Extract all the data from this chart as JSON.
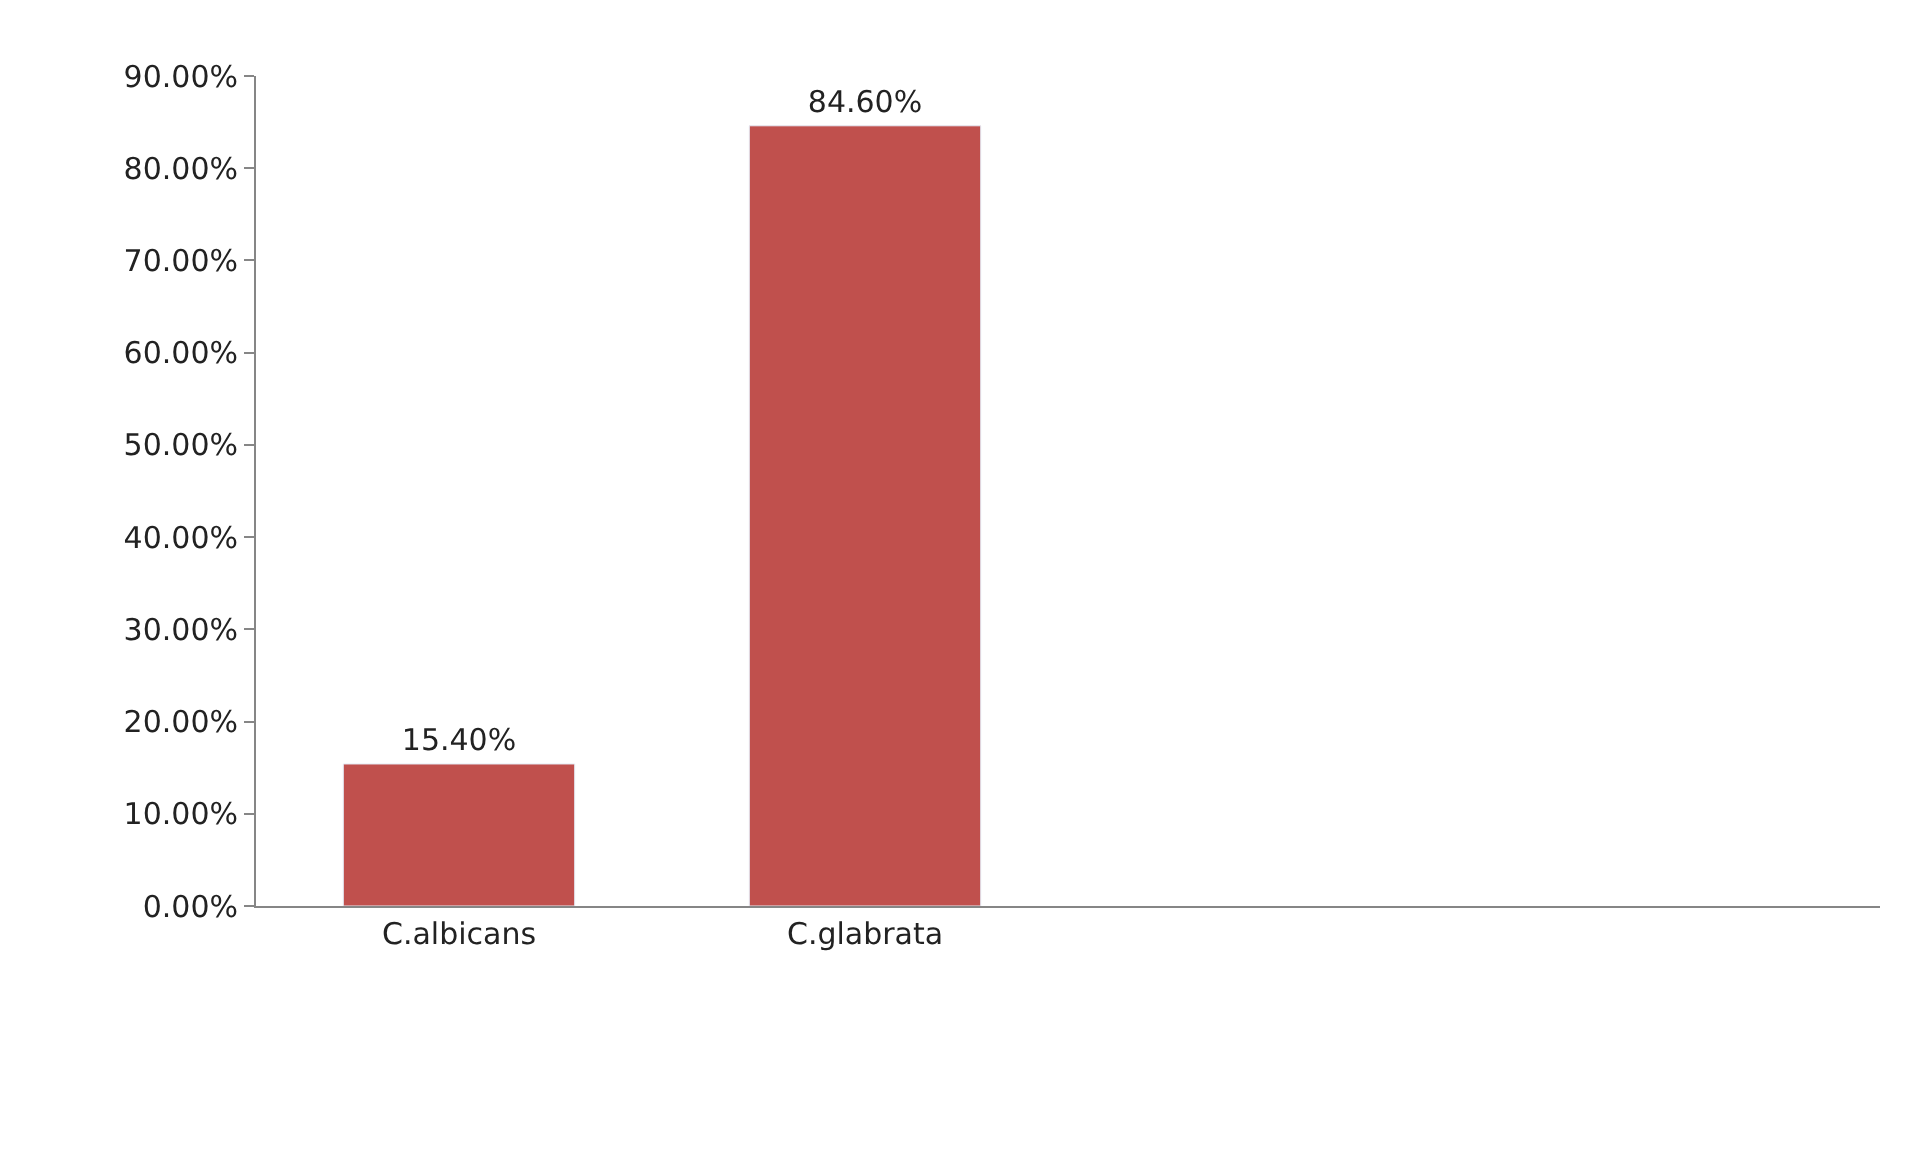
{
  "chart_data": {
    "type": "bar",
    "categories": [
      "C.albicans",
      "C.glabrata",
      null,
      null
    ],
    "values": [
      15.4,
      84.6,
      null,
      null
    ],
    "value_labels": [
      "15.40%",
      "84.60%",
      null,
      null
    ],
    "color": "#c0504d",
    "ylim": [
      0,
      90
    ],
    "yticks": [
      {
        "value": 0,
        "label": "0.00%"
      },
      {
        "value": 10,
        "label": "10.00%"
      },
      {
        "value": 20,
        "label": "20.00%"
      },
      {
        "value": 30,
        "label": "30.00%"
      },
      {
        "value": 40,
        "label": "40.00%"
      },
      {
        "value": 50,
        "label": "50.00%"
      },
      {
        "value": 60,
        "label": "60.00%"
      },
      {
        "value": 70,
        "label": "70.00%"
      },
      {
        "value": 80,
        "label": "80.00%"
      },
      {
        "value": 90,
        "label": "90.00%"
      }
    ],
    "grid": false,
    "legend": false
  }
}
